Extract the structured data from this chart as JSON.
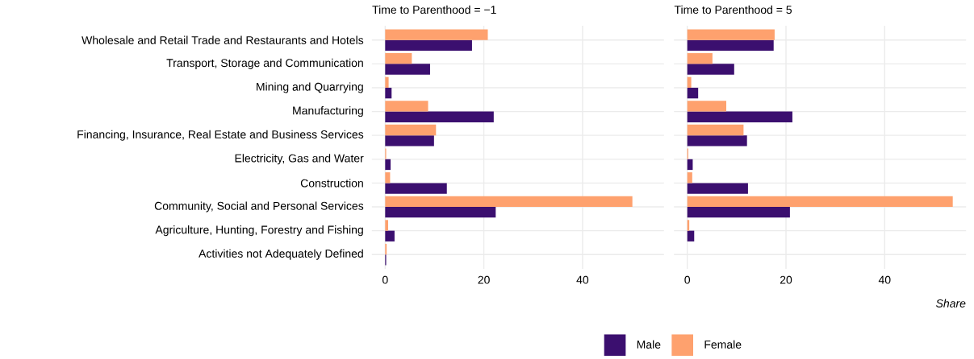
{
  "chart_data": [
    {
      "type": "bar",
      "orientation": "horizontal",
      "title": "Time to Parenthood = −1",
      "categories": [
        "Wholesale and Retail Trade and Restaurants and Hotels",
        "Transport, Storage and Communication",
        "Mining and Quarrying",
        "Manufacturing",
        "Financing, Insurance, Real Estate and Business Services",
        "Electricity, Gas and Water",
        "Construction",
        "Community, Social and Personal Services",
        "Agriculture, Hunting, Forestry and Fishing",
        "Activities not Adequately Defined"
      ],
      "series": [
        {
          "color": "#3b0f6f",
          "values": [
            17.6,
            9.1,
            1.3,
            22.0,
            9.9,
            1.1,
            12.5,
            22.4,
            1.9,
            0.2
          ]
        },
        {
          "color": "#fea16e",
          "values": [
            20.8,
            5.4,
            0.7,
            8.7,
            10.3,
            0.2,
            1.0,
            50.1,
            0.6,
            0.3
          ]
        }
      ],
      "xlim": [
        -2.7,
        56.5
      ],
      "xticks": [
        0,
        20,
        40
      ],
      "grid": true
    },
    {
      "type": "bar",
      "orientation": "horizontal",
      "title": "Time to Parenthood = 5",
      "xlabel": "Share",
      "categories": [
        null,
        null,
        null,
        null,
        null,
        null,
        null,
        null,
        null,
        null
      ],
      "series": [
        {
          "name": "Male",
          "color": "#3b0f6f",
          "values": [
            17.5,
            9.5,
            2.2,
            21.3,
            12.1,
            1.1,
            12.3,
            20.8,
            1.4,
            0
          ]
        },
        {
          "name": "Female",
          "color": "#fea16e",
          "values": [
            17.7,
            5.1,
            0.8,
            7.9,
            11.4,
            0.2,
            1.0,
            53.8,
            0.4,
            0
          ]
        }
      ],
      "xlim": [
        -2.7,
        56.5
      ],
      "xticks": [
        0,
        20,
        40
      ],
      "grid": true,
      "tick_labels": "x",
      "legend": "bottom"
    }
  ]
}
